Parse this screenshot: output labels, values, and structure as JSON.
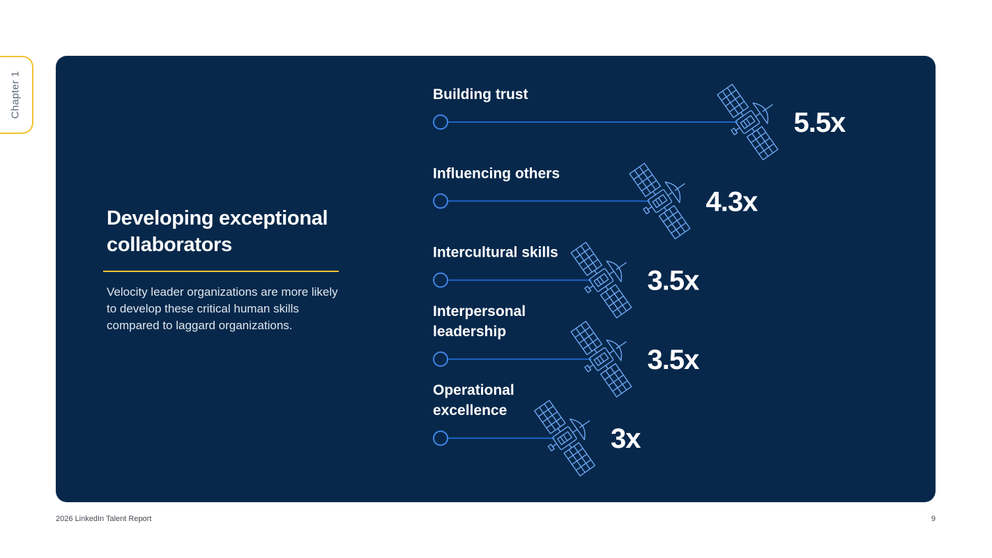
{
  "chapter_tab": {
    "label": "Chapter 1"
  },
  "intro": {
    "headline": "Developing exceptional collaborators",
    "description": "Velocity leader organizations are more likely to develop these critical human skills compared to laggard organizations."
  },
  "chart_data": {
    "type": "bar",
    "title": "",
    "xlabel": "",
    "ylabel": "",
    "categories": [
      [
        "Building trust"
      ],
      [
        "Influencing others"
      ],
      [
        "Intercultural skills"
      ],
      [
        "Interpersonal",
        "leadership"
      ],
      [
        "Operational",
        "excellence"
      ]
    ],
    "values": [
      5.5,
      4.3,
      3.5,
      3.5,
      3
    ],
    "value_labels": [
      "5.5x",
      "4.3x",
      "3.5x",
      "3.5x",
      "3x"
    ],
    "marker_icon": "satellite-icon",
    "colors": {
      "line": "#1d63c4",
      "icon": "#6ea6f0",
      "text": "#ffffff"
    },
    "grid": false
  },
  "footer": {
    "report_title": "2026 LinkedIn Talent Report",
    "page_number": "9"
  },
  "colors": {
    "panel": "#07284b",
    "accent": "#f2c230",
    "tab_text": "#5f6b7a"
  }
}
